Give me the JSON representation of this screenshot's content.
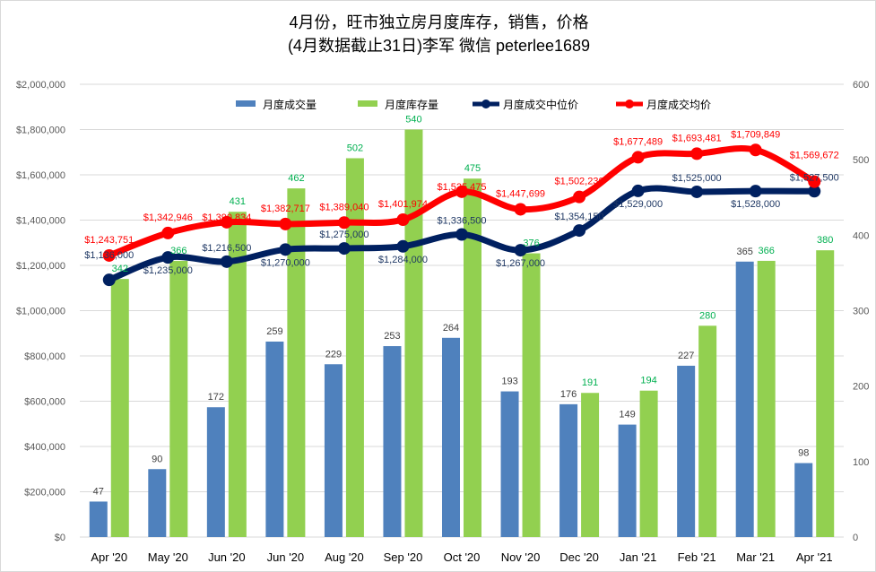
{
  "chart_data": {
    "type": "bar+line",
    "title": [
      "4月份，旺市独立房月度库存，销售，价格",
      "(4月数据截止31日)李军  微信 peterlee1689"
    ],
    "categories": [
      "Apr '20",
      "May '20",
      "Jun '20",
      "Jun '20",
      "Aug '20",
      "Sep '20",
      "Oct '20",
      "Nov '20",
      "Dec '20",
      "Jan '21",
      "Feb '21",
      "Mar '21",
      "Apr '21"
    ],
    "left_axis": {
      "min": 0,
      "max": 2000000,
      "step": 200000,
      "ticks": [
        "$0",
        "$200,000",
        "$400,000",
        "$600,000",
        "$800,000",
        "$1,000,000",
        "$1,200,000",
        "$1,400,000",
        "$1,600,000",
        "$1,800,000",
        "$2,000,000"
      ]
    },
    "right_axis": {
      "min": 0,
      "max": 600,
      "step": 100,
      "ticks": [
        "0",
        "100",
        "200",
        "300",
        "400",
        "500",
        "600"
      ]
    },
    "grid": true,
    "legend_position": "top",
    "series": [
      {
        "name": "月度成交量",
        "type": "bar",
        "axis": "right",
        "color": "#4f81bd",
        "label_color": "#404040",
        "values": [
          47,
          90,
          172,
          259,
          229,
          253,
          264,
          193,
          176,
          149,
          227,
          365,
          98
        ]
      },
      {
        "name": "月度库存量",
        "type": "bar",
        "axis": "right",
        "color": "#92d050",
        "label_color": "#00b050",
        "values": [
          342,
          366,
          431,
          462,
          502,
          540,
          475,
          376,
          191,
          194,
          280,
          366,
          380
        ]
      },
      {
        "name": "月度成交中位价",
        "type": "line",
        "axis": "left",
        "color": "#002060",
        "label_color": "#1f3864",
        "values": [
          1136000,
          1235000,
          1216500,
          1270000,
          1275000,
          1284000,
          1336500,
          1267000,
          1354150,
          1529000,
          1525000,
          1528000,
          1527500
        ],
        "labels": [
          "$1,136,000",
          "$1,235,000",
          "$1,216,500",
          "$1,270,000",
          "$1,275,000",
          "$1,284,000",
          "$1,336,500",
          "$1,267,000",
          "$1,354,150",
          "$1,529,000",
          "$1,525,000",
          "$1,528,000",
          "$1,527,500"
        ]
      },
      {
        "name": "月度成交均价",
        "type": "line",
        "axis": "left",
        "color": "#ff0000",
        "label_color": "#ff0000",
        "values": [
          1243751,
          1342946,
          1390834,
          1382717,
          1389040,
          1401974,
          1525475,
          1447699,
          1502230,
          1677489,
          1693481,
          1709849,
          1569672
        ],
        "labels": [
          "$1,243,751",
          "$1,342,946",
          "$1,390,834",
          "$1,382,717",
          "$1,389,040",
          "$1,401,974",
          "$1,525,475",
          "$1,447,699",
          "$1,502,230",
          "$1,677,489",
          "$1,693,481",
          "$1,709,849",
          "$1,569,672"
        ]
      }
    ]
  }
}
